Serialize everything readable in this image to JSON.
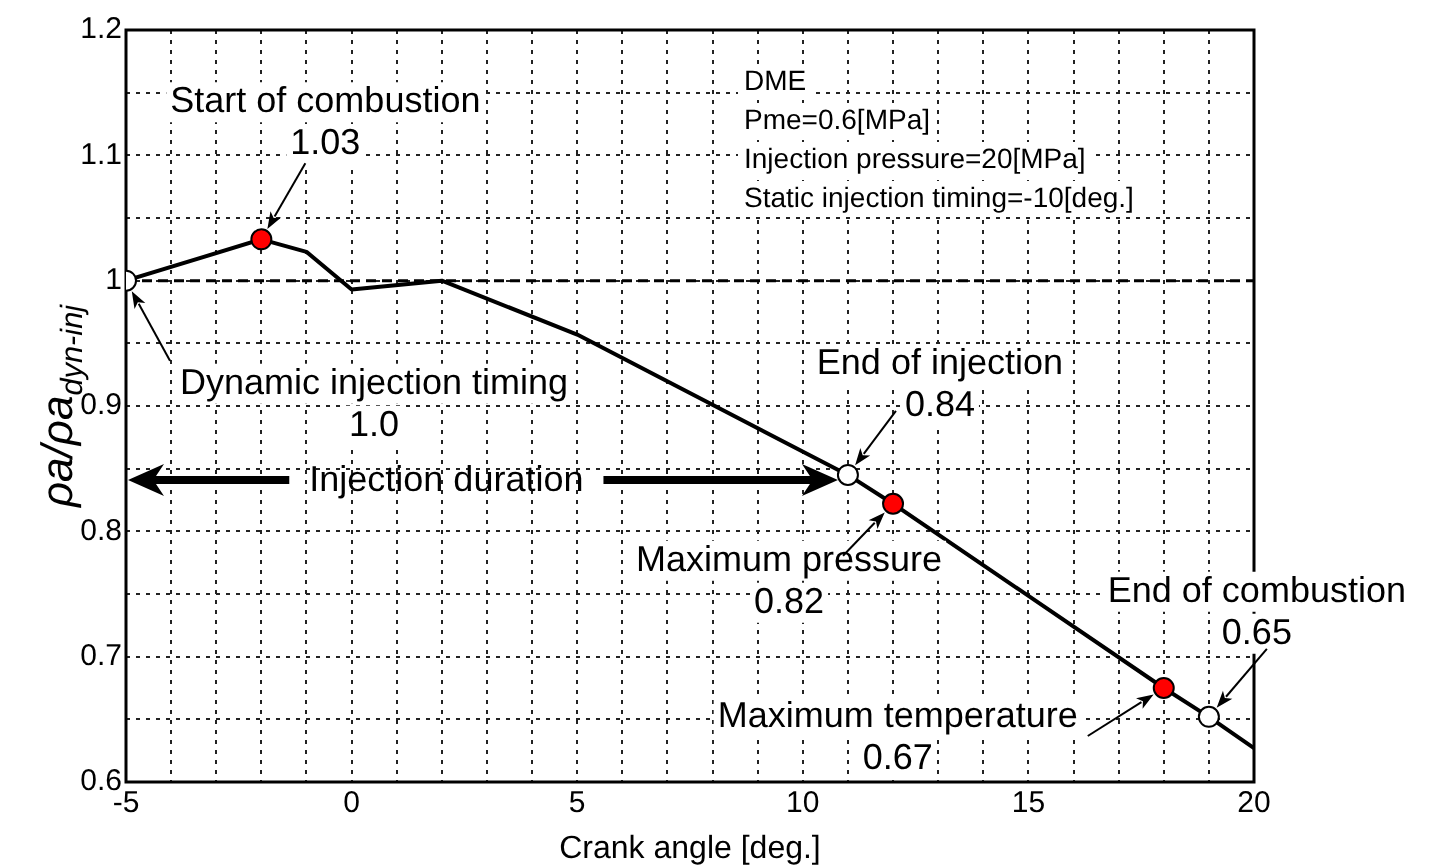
{
  "chart_data": {
    "type": "line",
    "xlabel": "Crank angle [deg.]",
    "ylabel": "ρa/ρa$_{dyn-inj}$",
    "x": [
      -5,
      -2,
      -1,
      0,
      2,
      5,
      11,
      12,
      18,
      19,
      20
    ],
    "series": [
      {
        "type": "line",
        "color": "#000000",
        "marker": "none",
        "values": [
          1.0,
          1.033,
          1.023,
          0.993,
          1.0,
          0.957,
          0.845,
          0.822,
          0.675,
          0.652,
          0.627
        ]
      },
      {
        "type": "scatter",
        "color": "#ff0000",
        "marker": "circle",
        "x": [
          -2,
          12,
          18
        ],
        "values": [
          1.033,
          0.822,
          0.675
        ]
      },
      {
        "type": "scatter",
        "color": "#ffffff",
        "marker": "circle",
        "x": [
          -5,
          11,
          19
        ],
        "values": [
          1.0,
          0.845,
          0.652
        ]
      }
    ],
    "xlim": [
      -5,
      20
    ],
    "xticks": [
      -5,
      {
        "value": -4,
        "label": null
      },
      {
        "value": -3,
        "label": null
      },
      {
        "value": -2,
        "label": null
      },
      {
        "value": -1,
        "label": null
      },
      0,
      {
        "value": 1,
        "label": null
      },
      {
        "value": 2,
        "label": null
      },
      {
        "value": 3,
        "label": null
      },
      {
        "value": 4,
        "label": null
      },
      5,
      {
        "value": 6,
        "label": null
      },
      {
        "value": 7,
        "label": null
      },
      {
        "value": 8,
        "label": null
      },
      {
        "value": 9,
        "label": null
      },
      10,
      {
        "value": 11,
        "label": null
      },
      {
        "value": 12,
        "label": null
      },
      {
        "value": 13,
        "label": null
      },
      {
        "value": 14,
        "label": null
      },
      15,
      {
        "value": 16,
        "label": null
      },
      {
        "value": 17,
        "label": null
      },
      {
        "value": 18,
        "label": null
      },
      {
        "value": 19,
        "label": null
      },
      20
    ],
    "ylim": [
      0.6,
      1.2
    ],
    "yticks": [
      0.6,
      {
        "value": 0.65,
        "label": null
      },
      0.7,
      {
        "value": 0.75,
        "label": null
      },
      0.8,
      {
        "value": 0.85,
        "label": null
      },
      0.9,
      {
        "value": 0.95,
        "label": null
      },
      1,
      {
        "value": 1.05,
        "label": null
      },
      1.1,
      {
        "value": 1.15,
        "label": null
      },
      1.2
    ],
    "grid": true,
    "ref_lines": [
      {
        "axis": "y",
        "value": 1.0,
        "line_style": "dashed"
      }
    ],
    "annotations": [
      "DME",
      "Pme=0.6[MPa]",
      "Injection pressure=20[MPa]",
      "Static injection timing=-10[deg.]",
      {
        "text": "Dynamic injection timing\n1.0",
        "x": -5,
        "y": 1.0
      },
      {
        "text": "Start of combustion\n1.03",
        "x": -2,
        "y": 1.033
      },
      {
        "text": "End of injection\n0.84",
        "x": 11,
        "y": 0.845
      },
      {
        "text": "Maximum pressure\n0.82",
        "x": 12,
        "y": 0.822
      },
      {
        "text": "Maximum temperature\n0.67",
        "x": 18,
        "y": 0.675
      },
      {
        "text": "End of combustion\n0.65",
        "x": 19,
        "y": 0.652
      },
      "Injection duration"
    ]
  }
}
